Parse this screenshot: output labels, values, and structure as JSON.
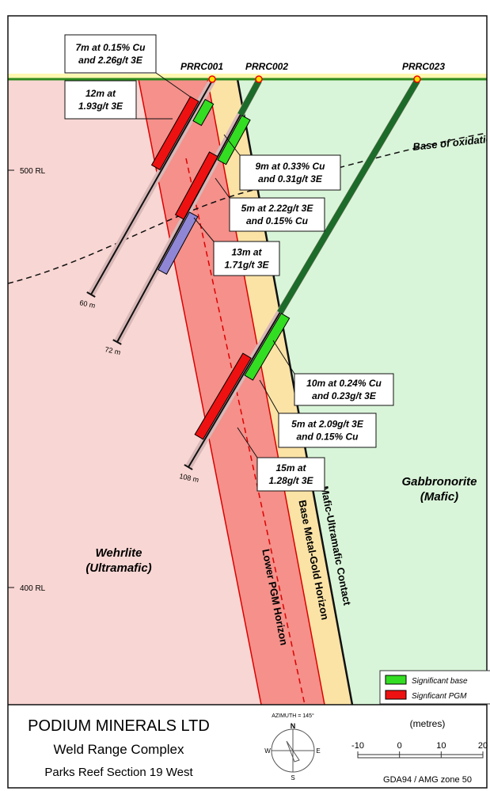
{
  "holes": [
    {
      "label": "PRRC001",
      "depth": "60 m"
    },
    {
      "label": "PRRC002",
      "depth": "72 m"
    },
    {
      "label": "PRRC023",
      "depth": "108 m"
    }
  ],
  "intercepts": [
    [
      "7m at 0.15% Cu",
      "and 2.26g/t 3E"
    ],
    [
      "12m at",
      "1.93g/t 3E"
    ],
    [
      "9m at 0.33% Cu",
      "and 0.31g/t 3E"
    ],
    [
      "5m at 2.22g/t 3E",
      "and 0.15% Cu"
    ],
    [
      "13m at",
      "1.71g/t 3E"
    ],
    [
      "10m at 0.24% Cu",
      "and 0.23g/t 3E"
    ],
    [
      "5m at 2.09g/t 3E",
      "and 0.15% Cu"
    ],
    [
      "15m at",
      "1.28g/t 3E"
    ]
  ],
  "rl_labels": [
    "500 RL",
    "400 RL"
  ],
  "oxidation": "Base of oxidation",
  "units": {
    "mafic": [
      "Gabbronorite",
      "(Mafic)"
    ],
    "ultramafic": [
      "Wehrlite",
      "(Ultramafic)"
    ]
  },
  "horizons": {
    "pgm": "Lower PGM Horizon",
    "base_metal": "Base Metal-Gold Horizon",
    "contact": "Mafic-Ultramafic Contact"
  },
  "legend": [
    "Significant base",
    "Signficant PGM"
  ],
  "title_block": {
    "company": "PODIUM MINERALS LTD",
    "project": "Weld Range Complex",
    "section": "Parks Reef Section 19 West",
    "azimuth": "AZIMUTH = 145°",
    "compass": [
      "N",
      "W",
      "E",
      "S"
    ],
    "scale_unit": "(metres)",
    "scale": [
      -10,
      0,
      10,
      20
    ],
    "datum": "GDA94 / AMG zone 50"
  }
}
